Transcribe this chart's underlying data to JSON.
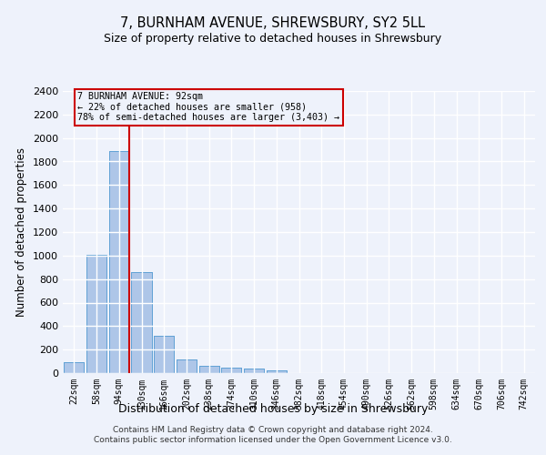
{
  "title": "7, BURNHAM AVENUE, SHREWSBURY, SY2 5LL",
  "subtitle": "Size of property relative to detached houses in Shrewsbury",
  "xlabel": "Distribution of detached houses by size in Shrewsbury",
  "ylabel": "Number of detached properties",
  "bar_color": "#aec6e8",
  "bar_edge_color": "#5a9fd4",
  "annotation_box_color": "#cc0000",
  "annotation_line_color": "#cc0000",
  "background_color": "#eef2fb",
  "grid_color": "#ffffff",
  "categories": [
    "22sqm",
    "58sqm",
    "94sqm",
    "130sqm",
    "166sqm",
    "202sqm",
    "238sqm",
    "274sqm",
    "310sqm",
    "346sqm",
    "382sqm",
    "418sqm",
    "454sqm",
    "490sqm",
    "526sqm",
    "562sqm",
    "598sqm",
    "634sqm",
    "670sqm",
    "706sqm",
    "742sqm"
  ],
  "values": [
    95,
    1010,
    1890,
    860,
    315,
    115,
    60,
    50,
    35,
    20,
    0,
    0,
    0,
    0,
    0,
    0,
    0,
    0,
    0,
    0,
    0
  ],
  "vline_x_bin": 2,
  "annotation_text_line1": "7 BURNHAM AVENUE: 92sqm",
  "annotation_text_line2": "← 22% of detached houses are smaller (958)",
  "annotation_text_line3": "78% of semi-detached houses are larger (3,403) →",
  "ylim": [
    0,
    2400
  ],
  "yticks": [
    0,
    200,
    400,
    600,
    800,
    1000,
    1200,
    1400,
    1600,
    1800,
    2000,
    2200,
    2400
  ],
  "footer_line1": "Contains HM Land Registry data © Crown copyright and database right 2024.",
  "footer_line2": "Contains public sector information licensed under the Open Government Licence v3.0."
}
